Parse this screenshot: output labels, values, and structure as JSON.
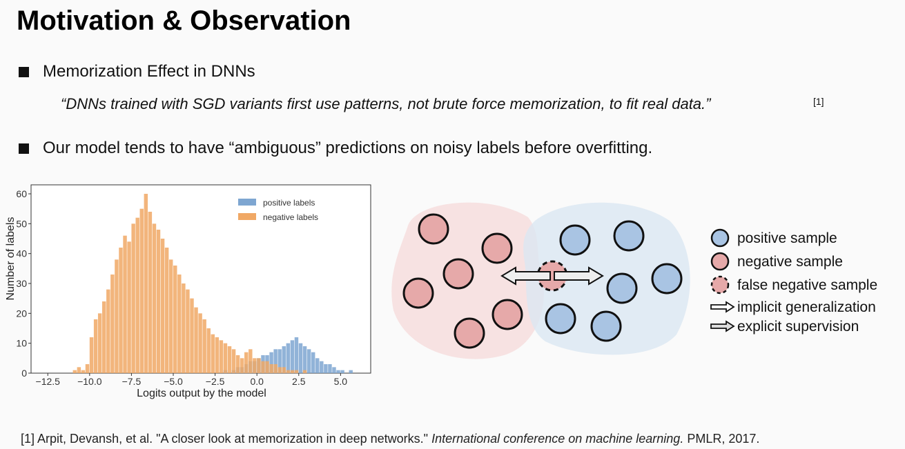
{
  "header": {
    "title": "Motivation & Observation"
  },
  "bullets": [
    {
      "text": "Memorization Effect in DNNs",
      "quote": "“DNNs trained with SGD variants first use patterns, not brute force memorization, to fit real data.”",
      "ref": "[1]"
    },
    {
      "text": "Our model tends to have “ambiguous” predictions on noisy labels before overfitting."
    }
  ],
  "chart_data": {
    "type": "histogram",
    "xlabel": "Logits output by the model",
    "ylabel": "Number of labels",
    "bins": [
      -11,
      -10.75,
      -10.5,
      -10.25,
      -10,
      -9.75,
      -9.5,
      -9.25,
      -9,
      -8.75,
      -8.5,
      -8.25,
      -8,
      -7.75,
      -7.5,
      -7.25,
      -7,
      -6.75,
      -6.5,
      -6.25,
      -6,
      -5.75,
      -5.5,
      -5.25,
      -5,
      -4.75,
      -4.5,
      -4.25,
      -4,
      -3.75,
      -3.5,
      -3.25,
      -3,
      -2.75,
      -2.5,
      -2.25,
      -2,
      -1.75,
      -1.5,
      -1.25,
      -1,
      -0.75,
      -0.5,
      -0.25,
      0,
      0.25,
      0.5,
      0.75,
      1,
      1.25,
      1.5,
      1.75,
      2,
      2.25,
      2.5,
      2.75,
      3,
      3.25,
      3.5,
      3.75,
      4,
      4.25,
      4.5,
      4.75,
      5,
      5.25,
      5.5,
      5.75,
      6
    ],
    "series": [
      {
        "name": "positive labels",
        "color": "#7ea6d1",
        "values": [
          0,
          0,
          0,
          0,
          0,
          0,
          0,
          0,
          0,
          0,
          0,
          0,
          0,
          0,
          0,
          0,
          0,
          0,
          0,
          0,
          0,
          0,
          0,
          0,
          0,
          0,
          0,
          0,
          0,
          0,
          0,
          0,
          0,
          0,
          0,
          0,
          1,
          0,
          1,
          2,
          2,
          3,
          4,
          4,
          5,
          6,
          6,
          7,
          8,
          8,
          9,
          10,
          11,
          12,
          10,
          9,
          8,
          7,
          5,
          4,
          3,
          3,
          2,
          1,
          1,
          0,
          1,
          0
        ]
      },
      {
        "name": "negative labels",
        "color": "#f0a865",
        "values": [
          1,
          2,
          1,
          3,
          12,
          18,
          20,
          24,
          28,
          33,
          38,
          42,
          46,
          44,
          50,
          52,
          55,
          60,
          54,
          50,
          48,
          45,
          42,
          38,
          36,
          33,
          30,
          28,
          25,
          22,
          20,
          18,
          15,
          13,
          12,
          11,
          10,
          9,
          8,
          6,
          5,
          7,
          8,
          5,
          5,
          4,
          4,
          3,
          3,
          2,
          2,
          1,
          1,
          1,
          0,
          1,
          0,
          0,
          0,
          0,
          0,
          0,
          0,
          0,
          0,
          0,
          0,
          0
        ]
      }
    ],
    "xlim": [
      -13.5,
      6.8
    ],
    "xticks": [
      {
        "value": -12.5,
        "label": "−12.5"
      },
      {
        "value": -10,
        "label": "−10.0"
      },
      {
        "value": -7.5,
        "label": "−7.5"
      },
      {
        "value": -5,
        "label": "−5.0"
      },
      {
        "value": -2.5,
        "label": "−2.5"
      },
      {
        "value": 0,
        "label": "0.0"
      },
      2.5,
      {
        "value": 5,
        "label": "5.0"
      }
    ],
    "ylim": [
      0,
      63
    ],
    "yticks": [
      0,
      10,
      20,
      30,
      40,
      50,
      60
    ],
    "legend": "upper right",
    "grid": false
  },
  "diagram": {
    "legend": [
      "positive sample",
      "negative sample",
      "false negative sample",
      "implicit generalization",
      "explicit supervision"
    ]
  },
  "footnote": {
    "before": "[1] Arpit, Devansh, et al. \"A closer look at memorization in deep networks.\"",
    "venue": "International conference on machine learning.",
    "after": "PMLR, 2017."
  }
}
